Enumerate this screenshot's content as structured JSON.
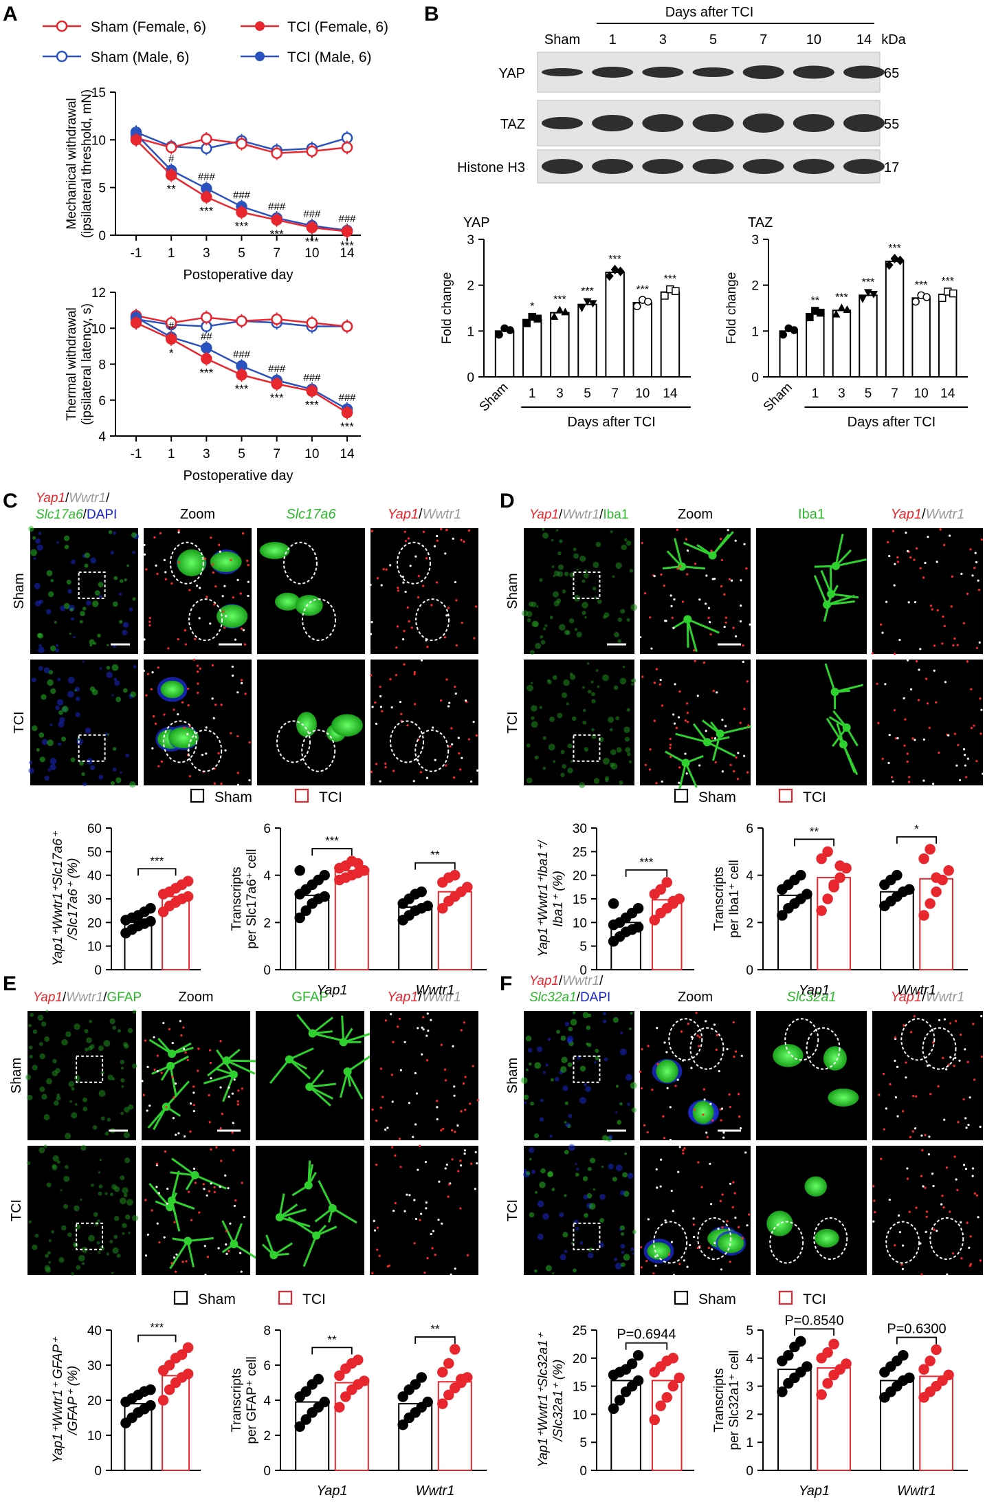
{
  "panels": {
    "A": "A",
    "B": "B",
    "C": "C",
    "D": "D",
    "E": "E",
    "F": "F"
  },
  "colors": {
    "sham": "#000000",
    "tci": "#e8262d",
    "tciMale": "#2a52be",
    "shamMale": "#2a52be",
    "green": "#2fd12f",
    "blue": "#1424c8"
  },
  "A": {
    "legend": {
      "sham_female": "Sham (Female, 6)",
      "tci_female": "TCI (Female, 6)",
      "sham_male": "Sham (Male, 6)",
      "tci_male": "TCI (Male, 6)"
    },
    "xlabel": "Postoperative day",
    "x": [
      "-1",
      "1",
      "3",
      "5",
      "7",
      "10",
      "14"
    ],
    "mech": {
      "ylabel1": "Mechanical withdrawal",
      "ylabel2": "(ipsilateral threshold, mN)",
      "ylim": [
        0,
        15
      ],
      "yticks": [
        "0",
        "5",
        "10",
        "15"
      ],
      "sham_female": [
        10.2,
        9.2,
        10.1,
        9.6,
        8.6,
        8.8,
        9.2
      ],
      "sham_male": [
        10.8,
        9.3,
        9.1,
        9.9,
        8.9,
        9.1,
        10.2
      ],
      "tci_female": [
        10.0,
        6.3,
        4.0,
        2.4,
        1.6,
        0.8,
        0.4
      ],
      "tci_male": [
        10.6,
        6.8,
        4.9,
        3.0,
        1.8,
        1.0,
        0.5
      ],
      "sig_hash": [
        "",
        "#",
        "###",
        "###",
        "###",
        "###",
        "###"
      ],
      "sig_star": [
        "",
        "**",
        "***",
        "***",
        "***",
        "***",
        "***"
      ]
    },
    "thermal": {
      "ylabel1": "Thermal withdrawal",
      "ylabel2": "(ipsilateral latency, s)",
      "ylim": [
        4,
        12
      ],
      "yticks": [
        "4",
        "6",
        "8",
        "10",
        "12"
      ],
      "sham_female": [
        10.7,
        10.3,
        10.6,
        10.4,
        10.5,
        10.3,
        10.1
      ],
      "sham_male": [
        10.5,
        10.2,
        10.1,
        10.4,
        10.3,
        10.1,
        10.1
      ],
      "tci_female": [
        10.3,
        9.4,
        8.3,
        7.4,
        6.9,
        6.5,
        5.3
      ],
      "tci_male": [
        10.6,
        9.5,
        8.9,
        7.9,
        7.1,
        6.6,
        5.5
      ],
      "sig_hash": [
        "",
        "#",
        "##",
        "###",
        "###",
        "###",
        "###"
      ],
      "sig_star": [
        "",
        "*",
        "***",
        "***",
        "***",
        "***",
        "***"
      ]
    }
  },
  "B": {
    "days_header": "Days after TCI",
    "lanes": [
      "Sham",
      "1",
      "3",
      "5",
      "7",
      "10",
      "14"
    ],
    "kda": "kDa",
    "bands": [
      {
        "name": "YAP",
        "kda": "65"
      },
      {
        "name": "TAZ",
        "kda": "55"
      },
      {
        "name": "Histone H3",
        "kda": "17"
      }
    ],
    "yap": {
      "title": "YAP",
      "ylabel": "Fold change",
      "ylim": [
        0,
        3
      ],
      "yticks": [
        "0",
        "1",
        "2",
        "3"
      ],
      "categories": [
        "Sham",
        "1",
        "3",
        "5",
        "7",
        "10",
        "14"
      ],
      "values": [
        1.0,
        1.25,
        1.4,
        1.58,
        2.28,
        1.62,
        1.85
      ],
      "sig": [
        "",
        "*",
        "***",
        "***",
        "***",
        "***",
        "***"
      ],
      "xlabel": "Days after TCI"
    },
    "taz": {
      "title": "TAZ",
      "ylabel": "Fold change",
      "ylim": [
        0,
        3
      ],
      "yticks": [
        "0",
        "1",
        "2",
        "3"
      ],
      "categories": [
        "Sham",
        "1",
        "3",
        "5",
        "7",
        "10",
        "14"
      ],
      "values": [
        1.0,
        1.38,
        1.45,
        1.78,
        2.52,
        1.72,
        1.8
      ],
      "sig": [
        "",
        "**",
        "***",
        "***",
        "***",
        "***",
        "***"
      ],
      "xlabel": "Days after TCI"
    }
  },
  "micro": {
    "zoom": "Zoom",
    "yap1": "Yap1",
    "wwtr1": "Wwtr1",
    "slash": "/",
    "sham": "Sham",
    "tci": "TCI",
    "C_label3": "Slc17a6",
    "C_dapi": "DAPI",
    "D_label3": "Iba1",
    "E_label3": "GFAP",
    "F_label3": "Slc32a1",
    "F_dapi": "DAPI"
  },
  "legend2": {
    "sham": "Sham",
    "tci": "TCI"
  },
  "C": {
    "pct": {
      "ylabel_main": "Yap1⁺Wwtr1⁺Slc17a6⁺",
      "ylabel_sub": "/Slc17a6⁺ (%)",
      "ylim": [
        0,
        60
      ],
      "yticks": [
        "0",
        "10",
        "20",
        "30",
        "40",
        "50",
        "60"
      ],
      "values": [
        20.5,
        31.0
      ],
      "sig": "***",
      "sham_pts": [
        15.5,
        17,
        18.5,
        19.5,
        20.5,
        21,
        22,
        23,
        24.5,
        26
      ],
      "tci_pts": [
        24.5,
        27,
        28.5,
        30,
        31,
        32,
        33,
        34.5,
        36,
        37.5
      ]
    },
    "tr": {
      "ylabel_main": "Transcripts",
      "ylabel_sub": "per Slc17a6⁺ cell",
      "ylim": [
        0,
        6
      ],
      "yticks": [
        "0",
        "2",
        "4",
        "6"
      ],
      "categories": [
        "Yap1",
        "Wwtr1"
      ],
      "values": [
        [
          3.15,
          4.2
        ],
        [
          2.65,
          3.3
        ]
      ],
      "sig": [
        "***",
        "**"
      ],
      "sham_pts": [
        [
          2.2,
          2.5,
          2.8,
          3.0,
          3.1,
          3.2,
          3.4,
          3.6,
          3.8,
          4.0,
          4.2
        ],
        [
          2.1,
          2.3,
          2.5,
          2.6,
          2.7,
          2.8,
          3.0,
          3.2,
          3.3
        ]
      ],
      "tci_pts": [
        [
          3.8,
          3.9,
          4.0,
          4.1,
          4.2,
          4.3,
          4.4,
          4.6,
          4.5
        ],
        [
          2.6,
          2.9,
          3.1,
          3.3,
          3.5,
          3.7,
          3.9,
          4.0
        ]
      ]
    }
  },
  "D": {
    "pct": {
      "ylabel_main": "Yap1⁺Wwtr1⁺Iba1⁺/",
      "ylabel_sub": "Iba1⁺ (%)",
      "ylim": [
        0,
        30
      ],
      "yticks": [
        "0",
        "5",
        "10",
        "15",
        "20",
        "25",
        "30"
      ],
      "values": [
        10.0,
        14.8
      ],
      "sig": "***",
      "sham_pts": [
        6,
        7,
        8,
        8.5,
        9,
        9.5,
        10,
        11,
        12,
        13,
        14
      ],
      "tci_pts": [
        10.5,
        12,
        13,
        14,
        15,
        16,
        17,
        18.5,
        14.5
      ]
    },
    "tr": {
      "ylabel_main": "Transcripts",
      "ylabel_sub": "per Iba1⁺ cell",
      "ylim": [
        0,
        6
      ],
      "yticks": [
        "0",
        "2",
        "4",
        "6"
      ],
      "categories": [
        "Yap1",
        "Wwtr1"
      ],
      "values": [
        [
          3.15,
          3.9
        ],
        [
          3.3,
          3.85
        ]
      ],
      "sig": [
        "**",
        "*"
      ],
      "sham_pts": [
        [
          2.3,
          2.6,
          2.8,
          3.0,
          3.2,
          3.4,
          3.6,
          3.8,
          4.0
        ],
        [
          2.7,
          2.9,
          3.1,
          3.3,
          3.4,
          3.6,
          3.8,
          4.0
        ]
      ],
      "tci_pts": [
        [
          2.5,
          3.0,
          3.5,
          3.9,
          4.3,
          4.7,
          5.0,
          3.6,
          4.4
        ],
        [
          2.3,
          2.8,
          3.3,
          3.8,
          4.2,
          4.7,
          5.1,
          3.9
        ]
      ]
    }
  },
  "E": {
    "pct": {
      "ylabel_main": "Yap1⁺Wwtr1⁺ GFAP⁺",
      "ylabel_sub": "/GFAP⁺ (%)",
      "ylim": [
        0,
        40
      ],
      "yticks": [
        "0",
        "10",
        "20",
        "30",
        "40"
      ],
      "values": [
        19.0,
        27.0
      ],
      "sig": "***",
      "sham_pts": [
        13.5,
        15,
        16.5,
        17.5,
        18.5,
        19.5,
        20.5,
        21.5,
        22.5,
        23
      ],
      "tci_pts": [
        20,
        23,
        25,
        26.5,
        27.5,
        28.5,
        30,
        32,
        33,
        35
      ]
    },
    "tr": {
      "ylabel_main": "Transcripts",
      "ylabel_sub": "per GFAP⁺ cell",
      "ylim": [
        0,
        8
      ],
      "yticks": [
        "0",
        "2",
        "4",
        "6",
        "8"
      ],
      "categories": [
        "Yap1",
        "Wwtr1"
      ],
      "values": [
        [
          3.9,
          5.0
        ],
        [
          3.8,
          5.05
        ]
      ],
      "sig": [
        "**",
        "**"
      ],
      "sham_pts": [
        [
          2.5,
          2.9,
          3.3,
          3.6,
          3.9,
          4.2,
          4.5,
          4.9,
          5.2
        ],
        [
          2.6,
          3.0,
          3.3,
          3.6,
          3.9,
          4.2,
          4.6,
          4.9,
          5.3
        ]
      ],
      "tci_pts": [
        [
          3.6,
          4.2,
          4.6,
          4.9,
          5.1,
          5.4,
          5.8,
          6.1,
          6.3
        ],
        [
          3.8,
          4.3,
          4.7,
          5.0,
          5.3,
          5.6,
          6.1,
          6.9,
          5.2
        ]
      ]
    }
  },
  "F": {
    "pct": {
      "ylabel_main": "Yap1⁺Wwtr1⁺Slc32a1⁺",
      "ylabel_sub": "/Slc32a1⁺ (%)",
      "ylim": [
        0,
        25
      ],
      "yticks": [
        "0",
        "5",
        "10",
        "15",
        "20",
        "25"
      ],
      "values": [
        16.0,
        16.0
      ],
      "sig": "P=0.6944",
      "sham_pts": [
        11,
        12.5,
        14,
        15,
        16,
        17,
        17.5,
        18,
        19,
        20.5
      ],
      "tci_pts": [
        9,
        11.5,
        13,
        15,
        16.5,
        17.5,
        18.5,
        19.5,
        20
      ]
    },
    "tr": {
      "ylabel_main": "Transcripts",
      "ylabel_sub": "per Slc32a1⁺ cell",
      "ylim": [
        0,
        5
      ],
      "yticks": [
        "0",
        "1",
        "2",
        "3",
        "4",
        "5"
      ],
      "categories": [
        "Yap1",
        "Wwtr1"
      ],
      "values": [
        [
          3.6,
          3.65
        ],
        [
          3.2,
          3.35
        ]
      ],
      "sig": [
        "P=0.8540",
        "P=0.6300"
      ],
      "sham_pts": [
        [
          2.8,
          3.1,
          3.3,
          3.5,
          3.7,
          3.9,
          4.1,
          4.4,
          4.6
        ],
        [
          2.6,
          2.8,
          3.0,
          3.2,
          3.3,
          3.5,
          3.7,
          3.9,
          4.1
        ]
      ],
      "tci_pts": [
        [
          2.7,
          3.1,
          3.4,
          3.6,
          3.8,
          4.0,
          4.2,
          4.5
        ],
        [
          2.6,
          2.8,
          3.0,
          3.2,
          3.4,
          3.6,
          3.9,
          4.3
        ]
      ]
    }
  }
}
